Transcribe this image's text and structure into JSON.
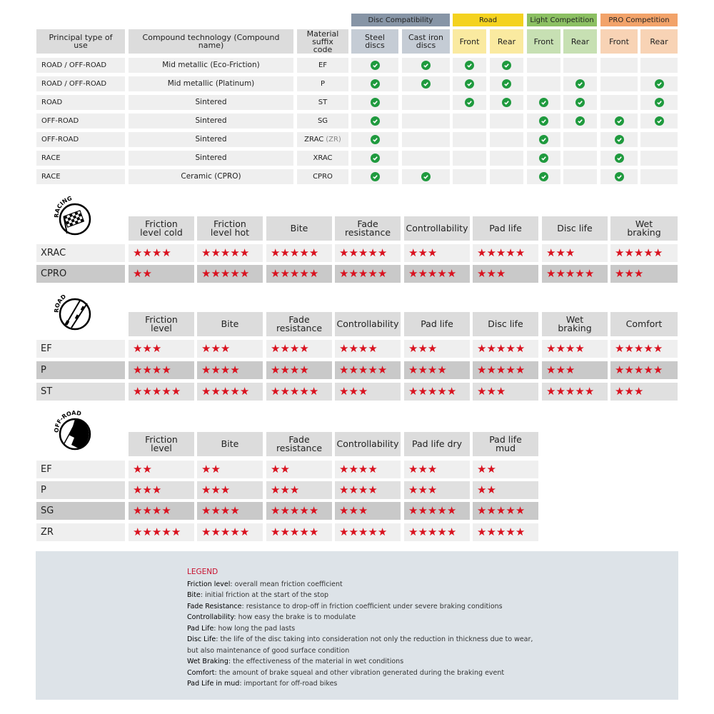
{
  "compat": {
    "groups": [
      {
        "label": "Disc Compatibility",
        "color": "#8795a6",
        "sub": "#c5ccd5"
      },
      {
        "label": "Road",
        "color": "#f4d21f",
        "sub": "#faeaa0"
      },
      {
        "label": "Light Competition",
        "color": "#8cc063",
        "sub": "#c7e0b3"
      },
      {
        "label": "PRO Competition",
        "color": "#f2a36a",
        "sub": "#f8d3b5"
      }
    ],
    "headers": [
      "Principal type of use",
      "Compound technology (Compound name)",
      "Material suffix code",
      "Steel discs",
      "Cast iron discs",
      "Front",
      "Rear",
      "Front",
      "Rear",
      "Front",
      "Rear"
    ],
    "rows": [
      {
        "use": "ROAD / OFF-ROAD",
        "compound": "Mid metallic (Eco-Friction)",
        "code": "EF",
        "code_extra": "",
        "checks": [
          1,
          1,
          1,
          1,
          0,
          0,
          0,
          0
        ]
      },
      {
        "use": "ROAD / OFF-ROAD",
        "compound": "Mid metallic (Platinum)",
        "code": "P",
        "code_extra": "",
        "checks": [
          1,
          1,
          1,
          1,
          0,
          1,
          0,
          1
        ]
      },
      {
        "use": "ROAD",
        "compound": "Sintered",
        "code": "ST",
        "code_extra": "",
        "checks": [
          1,
          0,
          1,
          1,
          1,
          1,
          0,
          1
        ]
      },
      {
        "use": "OFF-ROAD",
        "compound": "Sintered",
        "code": "SG",
        "code_extra": "",
        "checks": [
          1,
          0,
          0,
          0,
          1,
          1,
          1,
          1
        ]
      },
      {
        "use": "OFF-ROAD",
        "compound": "Sintered",
        "code": "ZRAC",
        "code_extra": "(ZR)",
        "checks": [
          1,
          0,
          0,
          0,
          1,
          0,
          1,
          0
        ]
      },
      {
        "use": "RACE",
        "compound": "Sintered",
        "code": "XRAC",
        "code_extra": "",
        "checks": [
          1,
          0,
          0,
          0,
          1,
          0,
          1,
          0
        ]
      },
      {
        "use": "RACE",
        "compound": "Ceramic (CPRO)",
        "code": "CPRO",
        "code_extra": "",
        "checks": [
          1,
          1,
          0,
          0,
          1,
          0,
          1,
          0
        ]
      }
    ],
    "check_icon": "check-circle-icon",
    "check_color": "#1f9a3e"
  },
  "ratings": [
    {
      "badge": "RACING",
      "icon": "checkered-flag-icon",
      "columns": [
        "Friction level cold",
        "Friction level hot",
        "Bite",
        "Fade resistance",
        "Controllability",
        "Pad life",
        "Disc life",
        "Wet braking"
      ],
      "rows": [
        {
          "code": "XRAC",
          "shade": "light",
          "stars": [
            4,
            5,
            5,
            5,
            3,
            5,
            3,
            5
          ]
        },
        {
          "code": "CPRO",
          "shade": "dark",
          "stars": [
            2,
            5,
            5,
            5,
            5,
            3,
            5,
            3
          ]
        }
      ]
    },
    {
      "badge": "ROAD",
      "icon": "road-icon",
      "columns": [
        "Friction level",
        "Bite",
        "Fade resistance",
        "Controllability",
        "Pad life",
        "Disc life",
        "Wet braking",
        "Comfort"
      ],
      "rows": [
        {
          "code": "EF",
          "shade": "light",
          "stars": [
            3,
            3,
            4,
            4,
            3,
            5,
            4,
            5
          ]
        },
        {
          "code": "P",
          "shade": "dark",
          "stars": [
            4,
            4,
            4,
            5,
            4,
            5,
            3,
            5
          ]
        },
        {
          "code": "ST",
          "shade": "mid",
          "stars": [
            5,
            5,
            5,
            3,
            5,
            3,
            5,
            3
          ]
        }
      ]
    },
    {
      "badge": "OFF-ROAD",
      "icon": "off-road-icon",
      "columns": [
        "Friction level",
        "Bite",
        "Fade resistance",
        "Controllability",
        "Pad life dry",
        "Pad life mud"
      ],
      "rows": [
        {
          "code": "EF",
          "shade": "light",
          "stars": [
            2,
            2,
            2,
            4,
            3,
            2
          ]
        },
        {
          "code": "P",
          "shade": "mid",
          "stars": [
            3,
            3,
            3,
            4,
            3,
            2
          ]
        },
        {
          "code": "SG",
          "shade": "dark",
          "stars": [
            4,
            4,
            5,
            3,
            5,
            5
          ]
        },
        {
          "code": "ZR",
          "shade": "light",
          "stars": [
            5,
            5,
            5,
            5,
            5,
            5
          ]
        }
      ]
    }
  ],
  "star_color": "#d9121f",
  "legend": {
    "title": "LEGEND",
    "items": [
      {
        "term": "Friction level",
        "desc": ": overall mean friction coefficient"
      },
      {
        "term": "Bite",
        "desc": ": initial friction at the start of the stop"
      },
      {
        "term": "Fade Resistance",
        "desc": ": resistance to drop-off in friction coefficient under severe braking conditions"
      },
      {
        "term": "Controllability",
        "desc": ": how easy the brake is to modulate"
      },
      {
        "term": "Pad Life",
        "desc": ": how long the pad lasts"
      },
      {
        "term": "Disc Life",
        "desc": ": the life of the disc taking into consideration not only the reduction in thickness due to wear,"
      },
      {
        "term": "",
        "desc": "but also maintenance of good surface condition"
      },
      {
        "term": "Wet Braking",
        "desc": ": the effectiveness of the material in wet conditions"
      },
      {
        "term": "Comfort",
        "desc": ": the amount of brake squeal and other vibration generated during the braking event"
      },
      {
        "term": "Pad Life in mud",
        "desc": ": important for off-road bikes"
      }
    ]
  }
}
